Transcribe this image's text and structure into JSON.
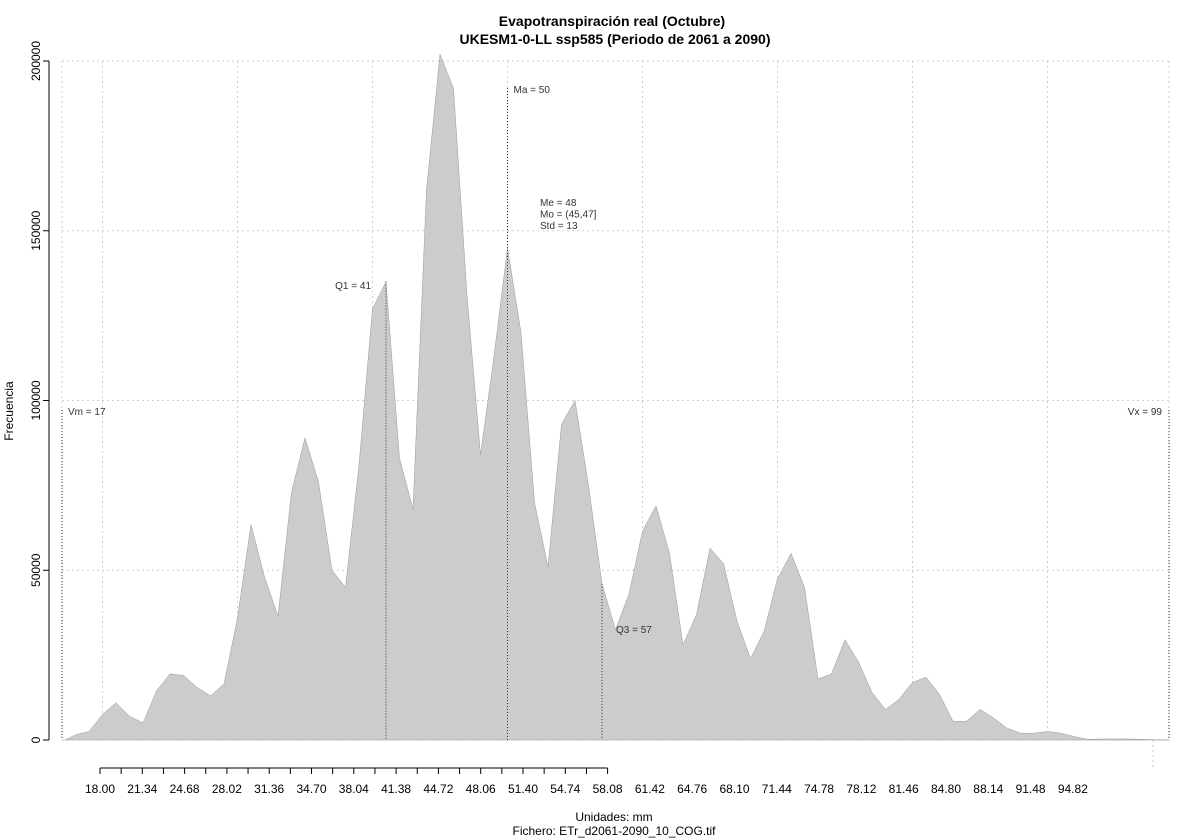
{
  "chart_data": {
    "type": "area",
    "title": "Evapotranspiración real (Octubre)",
    "subtitle": "UKESM1-0-LL ssp585 (Periodo de 2061 a 2090)",
    "xlabel": "Unidades: mm",
    "caption": "Fichero: ETr_d2061-2090_10_COG.tif",
    "ylabel": "Frecuencia",
    "xlim": [
      17,
      99
    ],
    "ylim": [
      0,
      200000
    ],
    "x_ticks": [
      "18.00",
      "21.34",
      "24.68",
      "28.02",
      "31.36",
      "34.70",
      "38.04",
      "41.38",
      "44.72",
      "48.06",
      "51.40",
      "54.74",
      "58.08",
      "61.42",
      "64.76",
      "68.10",
      "71.44",
      "74.78",
      "78.12",
      "81.46",
      "84.80",
      "88.14",
      "91.48",
      "94.82"
    ],
    "y_ticks": [
      "0",
      "50000",
      "100000",
      "150000",
      "200000"
    ],
    "fill_color": "#cccccc",
    "grid": true,
    "series": [
      {
        "x": [
          17.2,
          18,
          19,
          20,
          21,
          22,
          23,
          24,
          25,
          26,
          27,
          28,
          29,
          30,
          31,
          32,
          33,
          34,
          35,
          36,
          37,
          38,
          39,
          40,
          41,
          42,
          43,
          44,
          45,
          46,
          47,
          48,
          49,
          50,
          51,
          52,
          53,
          54,
          55,
          56,
          57,
          58,
          59,
          60,
          61,
          62,
          63,
          64,
          65,
          66,
          67,
          68,
          69,
          70,
          71,
          72,
          73,
          74,
          75,
          76,
          77,
          78,
          79,
          80,
          81,
          82,
          83,
          84,
          85,
          86,
          87,
          88,
          89,
          90,
          91,
          92,
          93,
          94,
          95,
          96,
          97,
          98,
          99
        ],
        "values": [
          0,
          1500,
          2500,
          7500,
          11000,
          7000,
          5000,
          14500,
          19500,
          19000,
          15500,
          13000,
          16500,
          36000,
          63500,
          48000,
          36500,
          73000,
          89000,
          76000,
          50000,
          45000,
          81000,
          127000,
          135000,
          83000,
          68000,
          162000,
          202000,
          192000,
          131000,
          84000,
          113000,
          145000,
          120000,
          70000,
          51000,
          93000,
          100000,
          75000,
          46000,
          32500,
          43000,
          61500,
          69000,
          55000,
          28000,
          37000,
          56500,
          52000,
          35000,
          24000,
          32000,
          47500,
          55000,
          45000,
          18000,
          19500,
          29500,
          23000,
          14000,
          9000,
          12000,
          17000,
          18500,
          13500,
          5500,
          5500,
          9000,
          6500,
          3500,
          2000,
          2000,
          2500,
          2000,
          1000,
          200,
          300,
          300,
          300,
          200,
          100,
          0
        ]
      }
    ],
    "markers": [
      {
        "label": "Vm = 17",
        "x": 17
      },
      {
        "label": "Q1 = 41",
        "x": 41
      },
      {
        "label": "Ma = 50",
        "x": 50
      },
      {
        "label": "Q3 = 57",
        "x": 57
      },
      {
        "label": "Vx = 99",
        "x": 99
      }
    ],
    "stats": [
      "Me = 48",
      "Mo = (45,47]",
      "Std = 13"
    ]
  }
}
